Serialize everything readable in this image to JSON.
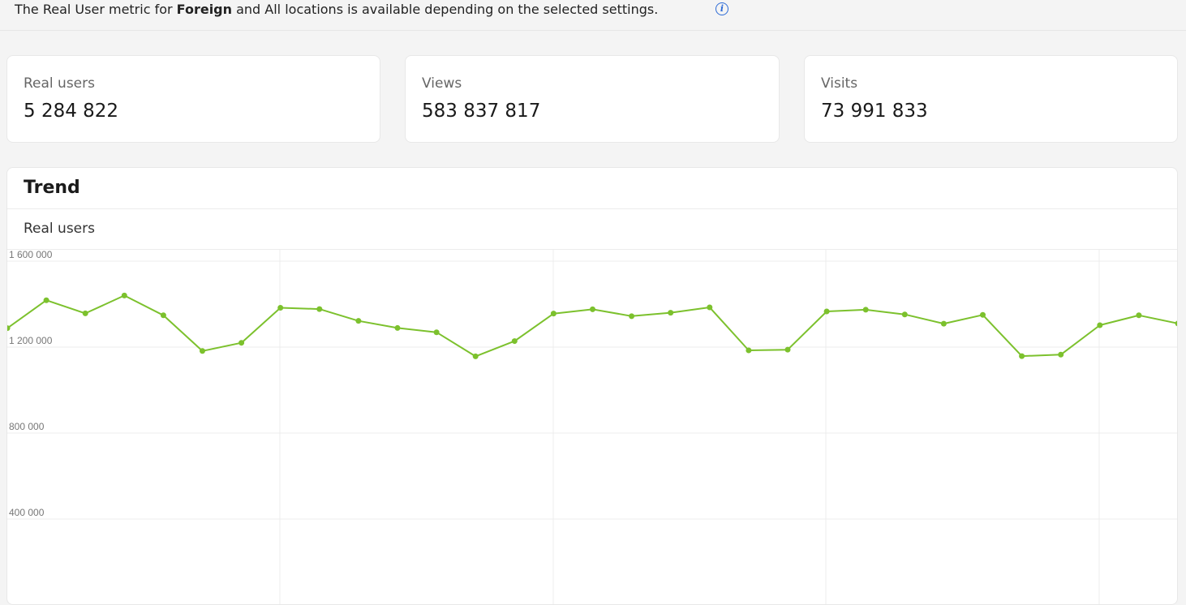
{
  "notice": {
    "text_before": "The Real User metric for ",
    "text_bold": "Foreign",
    "text_after": " and All locations is available depending on the selected settings.",
    "info_icon": "info-icon",
    "info_icon_glyph": "i"
  },
  "cards": [
    {
      "label": "Real users",
      "value": "5 284 822"
    },
    {
      "label": "Views",
      "value": "583 837 817"
    },
    {
      "label": "Visits",
      "value": "73 991 833"
    }
  ],
  "trend": {
    "title": "Trend",
    "subtitle": "Real users"
  },
  "chart_data": {
    "type": "line",
    "title": "",
    "xlabel": "",
    "ylabel": "",
    "ylim": [
      0,
      1600000
    ],
    "yticks": [
      {
        "value": 1600000,
        "label": "1 600 000"
      },
      {
        "value": 1200000,
        "label": "1 200 000"
      },
      {
        "value": 800000,
        "label": "800 000"
      },
      {
        "value": 400000,
        "label": "400 000"
      }
    ],
    "grid": true,
    "color": "#7cc12d",
    "series": [
      {
        "values": [
          1288000,
          1418000,
          1357000,
          1440000,
          1348000,
          1182000,
          1220000,
          1383000,
          1377000,
          1322000,
          1289000,
          1269000,
          1157000,
          1228000,
          1356000,
          1376000,
          1344000,
          1360000,
          1385000,
          1185000,
          1188000,
          1366000,
          1374000,
          1352000,
          1309000,
          1350000,
          1158000,
          1165000,
          1302000,
          1348000,
          1310000
        ]
      }
    ]
  }
}
